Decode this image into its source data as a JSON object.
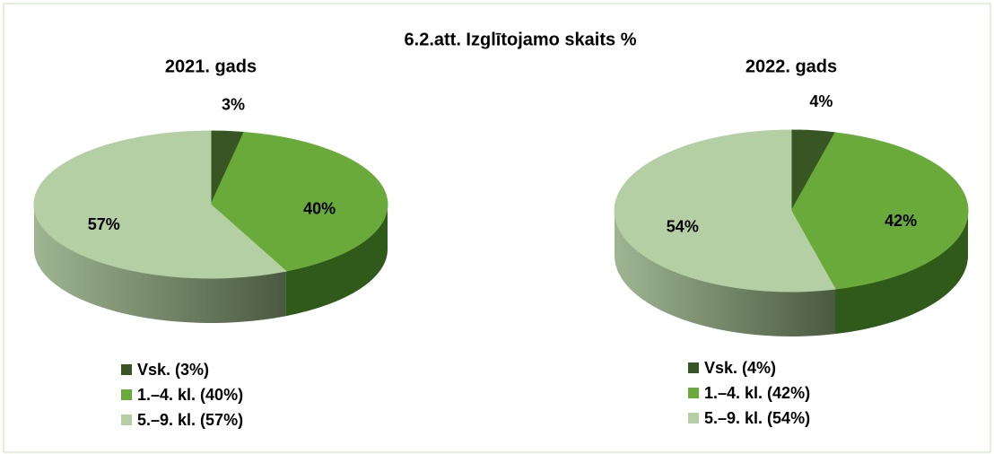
{
  "title": "6.2.att. Izglītojamo skaits %",
  "chart_data": [
    {
      "type": "pie",
      "title": "2021. gads",
      "categories": [
        "Vsk. (3%)",
        "1.–4. kl. (40%)",
        "5.–9. kl. (57%)"
      ],
      "values": [
        3,
        40,
        57
      ],
      "value_labels": [
        "3%",
        "40%",
        "57%"
      ],
      "colors": [
        "#375623",
        "#6aaa3a",
        "#b5cfa5"
      ]
    },
    {
      "type": "pie",
      "title": "2022. gads",
      "categories": [
        "Vsk. (4%)",
        "1.–4. kl. (42%)",
        "5.–9. kl. (54%)"
      ],
      "values": [
        4,
        42,
        54
      ],
      "value_labels": [
        "4%",
        "42%",
        "54%"
      ],
      "colors": [
        "#375623",
        "#6aaa3a",
        "#b5cfa5"
      ]
    }
  ]
}
